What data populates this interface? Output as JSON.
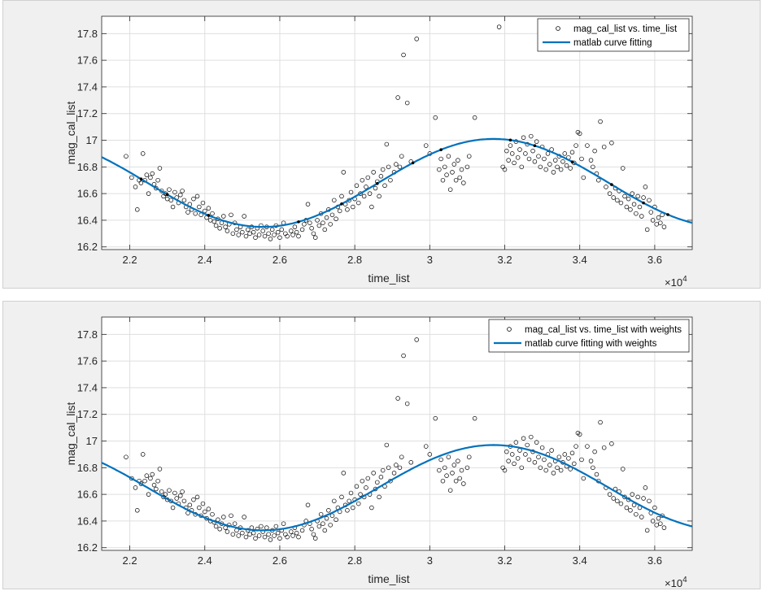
{
  "chart_data": [
    {
      "type": "scatter",
      "xlabel": "time_list",
      "ylabel": "mag_cal_list",
      "x_exponent_label": "×10",
      "x_exponent": "4",
      "xlim": [
        21250,
        37000
      ],
      "ylim": [
        16.18,
        17.93
      ],
      "grid": true,
      "legend_position": "top-right",
      "x_ticks": [
        22000,
        24000,
        26000,
        28000,
        30000,
        32000,
        34000,
        36000
      ],
      "x_tick_labels": [
        "2.2",
        "2.4",
        "2.6",
        "2.8",
        "3",
        "3.2",
        "3.4",
        "3.6"
      ],
      "y_ticks": [
        16.2,
        16.4,
        16.6,
        16.8,
        17.0,
        17.2,
        17.4,
        17.6,
        17.8
      ],
      "y_tick_labels": [
        "16.2",
        "16.4",
        "16.6",
        "16.8",
        "17",
        "17.2",
        "17.4",
        "17.6",
        "17.8"
      ],
      "scatter_name": "mag_cal_list vs. time_list",
      "curve_name": "matlab curve fitting",
      "curve_model": {
        "mean": 16.68,
        "amplitude": 0.33,
        "center": 31700,
        "period": 12300
      },
      "curve_points": [
        [
          21250,
          16.87
        ],
        [
          22500,
          16.7
        ],
        [
          24000,
          16.47
        ],
        [
          25500,
          16.35
        ],
        [
          26000,
          16.35
        ],
        [
          27000,
          16.4
        ],
        [
          28000,
          16.53
        ],
        [
          29000,
          16.72
        ],
        [
          30000,
          16.88
        ],
        [
          31000,
          16.98
        ],
        [
          31700,
          17.01
        ],
        [
          33000,
          16.93
        ],
        [
          34000,
          16.79
        ],
        [
          35000,
          16.6
        ],
        [
          36000,
          16.44
        ],
        [
          37000,
          16.38
        ]
      ]
    },
    {
      "type": "scatter",
      "xlabel": "time_list",
      "ylabel": "mag_cal_list",
      "x_exponent_label": "×10",
      "x_exponent": "4",
      "xlim": [
        21250,
        37000
      ],
      "ylim": [
        16.18,
        17.93
      ],
      "grid": true,
      "legend_position": "top-right",
      "x_ticks": [
        22000,
        24000,
        26000,
        28000,
        30000,
        32000,
        34000,
        36000
      ],
      "x_tick_labels": [
        "2.2",
        "2.4",
        "2.6",
        "2.8",
        "3",
        "3.2",
        "3.4",
        "3.6"
      ],
      "y_ticks": [
        16.2,
        16.4,
        16.6,
        16.8,
        17.0,
        17.2,
        17.4,
        17.6,
        17.8
      ],
      "y_tick_labels": [
        "16.2",
        "16.4",
        "16.6",
        "16.8",
        "17",
        "17.2",
        "17.4",
        "17.6",
        "17.8"
      ],
      "scatter_name": "mag_cal_list vs. time_list with weights",
      "curve_name": "matlab curve fitting with weights",
      "curve_model": {
        "mean": 16.65,
        "amplitude": 0.32,
        "center": 31700,
        "period": 12300
      },
      "curve_points": [
        [
          21250,
          16.86
        ],
        [
          22500,
          16.68
        ],
        [
          24000,
          16.45
        ],
        [
          25500,
          16.33
        ],
        [
          26000,
          16.33
        ],
        [
          27000,
          16.38
        ],
        [
          28000,
          16.5
        ],
        [
          29000,
          16.69
        ],
        [
          30000,
          16.85
        ],
        [
          31000,
          16.95
        ],
        [
          31700,
          16.97
        ],
        [
          33000,
          16.9
        ],
        [
          34000,
          16.75
        ],
        [
          35000,
          16.57
        ],
        [
          36000,
          16.42
        ],
        [
          37000,
          16.36
        ]
      ]
    }
  ],
  "scatter_points": [
    [
      21900,
      16.88
    ],
    [
      22050,
      16.72
    ],
    [
      22150,
      16.65
    ],
    [
      22200,
      16.48
    ],
    [
      22250,
      16.7
    ],
    [
      22300,
      16.68
    ],
    [
      22350,
      16.9
    ],
    [
      22400,
      16.7
    ],
    [
      22450,
      16.74
    ],
    [
      22500,
      16.6
    ],
    [
      22550,
      16.72
    ],
    [
      22600,
      16.75
    ],
    [
      22650,
      16.67
    ],
    [
      22700,
      16.64
    ],
    [
      22750,
      16.7
    ],
    [
      22800,
      16.79
    ],
    [
      22850,
      16.62
    ],
    [
      22900,
      16.58
    ],
    [
      22950,
      16.6
    ],
    [
      23000,
      16.56
    ],
    [
      23050,
      16.63
    ],
    [
      23100,
      16.55
    ],
    [
      23150,
      16.5
    ],
    [
      23200,
      16.61
    ],
    [
      23250,
      16.57
    ],
    [
      23300,
      16.53
    ],
    [
      23350,
      16.59
    ],
    [
      23400,
      16.62
    ],
    [
      23450,
      16.55
    ],
    [
      23500,
      16.5
    ],
    [
      23550,
      16.46
    ],
    [
      23600,
      16.52
    ],
    [
      23650,
      16.48
    ],
    [
      23700,
      16.56
    ],
    [
      23750,
      16.45
    ],
    [
      23800,
      16.58
    ],
    [
      23850,
      16.5
    ],
    [
      23900,
      16.44
    ],
    [
      23950,
      16.53
    ],
    [
      24000,
      16.47
    ],
    [
      24050,
      16.42
    ],
    [
      24100,
      16.49
    ],
    [
      24150,
      16.4
    ],
    [
      24200,
      16.45
    ],
    [
      24250,
      16.39
    ],
    [
      24300,
      16.36
    ],
    [
      24350,
      16.41
    ],
    [
      24400,
      16.34
    ],
    [
      24450,
      16.38
    ],
    [
      24500,
      16.43
    ],
    [
      24550,
      16.35
    ],
    [
      24600,
      16.32
    ],
    [
      24650,
      16.37
    ],
    [
      24700,
      16.44
    ],
    [
      24750,
      16.3
    ],
    [
      24800,
      16.38
    ],
    [
      24850,
      16.33
    ],
    [
      24900,
      16.29
    ],
    [
      24950,
      16.35
    ],
    [
      25000,
      16.31
    ],
    [
      25050,
      16.43
    ],
    [
      25100,
      16.28
    ],
    [
      25150,
      16.33
    ],
    [
      25200,
      16.3
    ],
    [
      25250,
      16.35
    ],
    [
      25300,
      16.31
    ],
    [
      25350,
      16.27
    ],
    [
      25400,
      16.34
    ],
    [
      25450,
      16.29
    ],
    [
      25500,
      16.36
    ],
    [
      25550,
      16.32
    ],
    [
      25600,
      16.28
    ],
    [
      25650,
      16.35
    ],
    [
      25700,
      16.3
    ],
    [
      25750,
      16.26
    ],
    [
      25800,
      16.33
    ],
    [
      25850,
      16.29
    ],
    [
      25900,
      16.36
    ],
    [
      25950,
      16.31
    ],
    [
      26000,
      16.27
    ],
    [
      26050,
      16.33
    ],
    [
      26100,
      16.38
    ],
    [
      26150,
      16.3
    ],
    [
      26200,
      16.28
    ],
    [
      26300,
      16.32
    ],
    [
      26350,
      16.29
    ],
    [
      26400,
      16.35
    ],
    [
      26450,
      16.31
    ],
    [
      26500,
      16.28
    ],
    [
      26600,
      16.33
    ],
    [
      26650,
      16.37
    ],
    [
      26700,
      16.4
    ],
    [
      26750,
      16.52
    ],
    [
      26800,
      16.38
    ],
    [
      26850,
      16.34
    ],
    [
      26900,
      16.3
    ],
    [
      26950,
      16.27
    ],
    [
      27000,
      16.4
    ],
    [
      27050,
      16.36
    ],
    [
      27100,
      16.45
    ],
    [
      27150,
      16.38
    ],
    [
      27200,
      16.33
    ],
    [
      27250,
      16.42
    ],
    [
      27300,
      16.48
    ],
    [
      27350,
      16.37
    ],
    [
      27400,
      16.44
    ],
    [
      27450,
      16.55
    ],
    [
      27500,
      16.41
    ],
    [
      27550,
      16.5
    ],
    [
      27600,
      16.47
    ],
    [
      27650,
      16.58
    ],
    [
      27700,
      16.76
    ],
    [
      27750,
      16.52
    ],
    [
      27800,
      16.48
    ],
    [
      27850,
      16.55
    ],
    [
      27900,
      16.61
    ],
    [
      27950,
      16.5
    ],
    [
      28000,
      16.56
    ],
    [
      28050,
      16.66
    ],
    [
      28100,
      16.53
    ],
    [
      28150,
      16.6
    ],
    [
      28200,
      16.7
    ],
    [
      28250,
      16.58
    ],
    [
      28300,
      16.65
    ],
    [
      28350,
      16.72
    ],
    [
      28400,
      16.6
    ],
    [
      28450,
      16.5
    ],
    [
      28500,
      16.76
    ],
    [
      28550,
      16.64
    ],
    [
      28600,
      16.69
    ],
    [
      28650,
      16.58
    ],
    [
      28700,
      16.73
    ],
    [
      28750,
      16.78
    ],
    [
      28800,
      16.66
    ],
    [
      28850,
      16.97
    ],
    [
      28900,
      16.8
    ],
    [
      28950,
      16.7
    ],
    [
      29050,
      16.76
    ],
    [
      29100,
      16.82
    ],
    [
      29150,
      17.32
    ],
    [
      29200,
      16.8
    ],
    [
      29250,
      16.88
    ],
    [
      29300,
      17.64
    ],
    [
      29400,
      17.28
    ],
    [
      29500,
      16.84
    ],
    [
      29650,
      17.76
    ],
    [
      29900,
      16.96
    ],
    [
      30000,
      16.9
    ],
    [
      30150,
      17.17
    ],
    [
      30250,
      16.78
    ],
    [
      30300,
      16.86
    ],
    [
      30350,
      16.7
    ],
    [
      30400,
      16.8
    ],
    [
      30450,
      16.74
    ],
    [
      30500,
      16.88
    ],
    [
      30550,
      16.63
    ],
    [
      30600,
      16.76
    ],
    [
      30650,
      16.82
    ],
    [
      30700,
      16.7
    ],
    [
      30750,
      16.85
    ],
    [
      30800,
      16.72
    ],
    [
      30850,
      16.78
    ],
    [
      30900,
      16.68
    ],
    [
      31000,
      16.8
    ],
    [
      31050,
      16.88
    ],
    [
      31200,
      17.17
    ],
    [
      31850,
      17.85
    ],
    [
      31950,
      16.8
    ],
    [
      32000,
      16.78
    ],
    [
      32050,
      16.92
    ],
    [
      32100,
      16.85
    ],
    [
      32150,
      16.96
    ],
    [
      32200,
      16.9
    ],
    [
      32250,
      16.83
    ],
    [
      32300,
      16.99
    ],
    [
      32350,
      16.87
    ],
    [
      32400,
      16.93
    ],
    [
      32450,
      16.8
    ],
    [
      32500,
      17.02
    ],
    [
      32550,
      16.9
    ],
    [
      32600,
      16.97
    ],
    [
      32650,
      16.86
    ],
    [
      32700,
      17.03
    ],
    [
      32750,
      16.92
    ],
    [
      32800,
      16.84
    ],
    [
      32850,
      16.99
    ],
    [
      32900,
      16.88
    ],
    [
      32950,
      16.8
    ],
    [
      33000,
      16.95
    ],
    [
      33050,
      16.86
    ],
    [
      33100,
      16.78
    ],
    [
      33150,
      16.9
    ],
    [
      33200,
      16.82
    ],
    [
      33250,
      16.93
    ],
    [
      33300,
      16.76
    ],
    [
      33350,
      16.85
    ],
    [
      33400,
      16.8
    ],
    [
      33450,
      16.88
    ],
    [
      33500,
      16.78
    ],
    [
      33550,
      16.84
    ],
    [
      33600,
      16.9
    ],
    [
      33650,
      16.81
    ],
    [
      33700,
      16.87
    ],
    [
      33750,
      16.79
    ],
    [
      33800,
      16.91
    ],
    [
      33850,
      16.83
    ],
    [
      33900,
      16.96
    ],
    [
      33950,
      17.06
    ],
    [
      34000,
      17.05
    ],
    [
      34050,
      16.86
    ],
    [
      34100,
      16.72
    ],
    [
      34200,
      16.96
    ],
    [
      34300,
      16.85
    ],
    [
      34350,
      16.8
    ],
    [
      34400,
      16.92
    ],
    [
      34450,
      16.75
    ],
    [
      34500,
      16.7
    ],
    [
      34550,
      17.14
    ],
    [
      34650,
      16.95
    ],
    [
      34700,
      16.65
    ],
    [
      34800,
      16.6
    ],
    [
      34850,
      16.98
    ],
    [
      34900,
      16.57
    ],
    [
      34950,
      16.64
    ],
    [
      35000,
      16.55
    ],
    [
      35050,
      16.62
    ],
    [
      35100,
      16.53
    ],
    [
      35150,
      16.79
    ],
    [
      35200,
      16.58
    ],
    [
      35250,
      16.5
    ],
    [
      35300,
      16.56
    ],
    [
      35350,
      16.48
    ],
    [
      35400,
      16.6
    ],
    [
      35450,
      16.52
    ],
    [
      35500,
      16.45
    ],
    [
      35550,
      16.58
    ],
    [
      35600,
      16.5
    ],
    [
      35650,
      16.43
    ],
    [
      35700,
      16.57
    ],
    [
      35750,
      16.65
    ],
    [
      35800,
      16.33
    ],
    [
      35850,
      16.55
    ],
    [
      35900,
      16.46
    ],
    [
      35950,
      16.4
    ],
    [
      36000,
      16.5
    ],
    [
      36050,
      16.37
    ],
    [
      36100,
      16.42
    ],
    [
      36150,
      16.38
    ],
    [
      36200,
      16.44
    ],
    [
      36250,
      16.35
    ]
  ],
  "top_curve_markers": [
    22300,
    23000,
    24100,
    26500,
    27650,
    28600,
    29550,
    30300,
    32150,
    32800,
    33800,
    34850,
    35700,
    36350
  ]
}
